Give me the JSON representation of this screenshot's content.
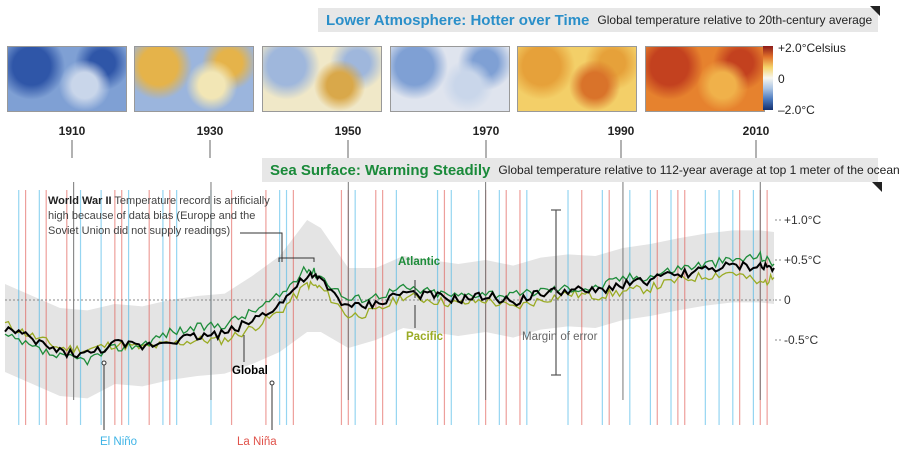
{
  "header1": {
    "title": "Lower Atmosphere: Hotter over Time",
    "subtitle": "Global temperature relative to 20th-century average",
    "title_color": "#2a8fc9"
  },
  "header2": {
    "title": "Sea Surface: Warming Steadily",
    "subtitle": "Global temperature relative to 112-year average at top 1 meter of the ocean",
    "title_color": "#1a8a3a"
  },
  "maps": [
    {
      "year": "1910",
      "tone": "cool"
    },
    {
      "year": "1930",
      "tone": "mixed-warm"
    },
    {
      "year": "1950",
      "tone": "mixed"
    },
    {
      "year": "1970",
      "tone": "mixed-cool"
    },
    {
      "year": "1990",
      "tone": "warm"
    },
    {
      "year": "2010",
      "tone": "hot"
    }
  ],
  "colorbar": {
    "top": "+2.0°Celsius",
    "mid": "0",
    "bottom": "–2.0°C"
  },
  "annotation": {
    "lead": "World War II",
    "text": "Temperature record is artificially high because of data bias (Europe and the Soviet Union did not supply readings)"
  },
  "labels": {
    "atlantic": "Atlantic",
    "pacific": "Pacific",
    "global": "Global",
    "margin": "Margin of error",
    "el_nino": "El Niño",
    "la_nina": "La Niña"
  },
  "colors": {
    "atlantic": "#1e8c3a",
    "pacific": "#9aab24",
    "global": "#000000",
    "el_nino": "#3fb4e6",
    "la_nina": "#e0524a",
    "band": "#e4e4e4"
  },
  "chart_data": {
    "type": "line",
    "x": [
      1900,
      1904,
      1908,
      1912,
      1916,
      1920,
      1924,
      1928,
      1932,
      1936,
      1940,
      1944,
      1946,
      1950,
      1954,
      1958,
      1962,
      1966,
      1970,
      1974,
      1978,
      1982,
      1986,
      1990,
      1994,
      1998,
      2002,
      2006,
      2010,
      2012
    ],
    "ylim": [
      -1.3,
      1.3
    ],
    "yticks": [
      "+1.0°C",
      "+0.5°C",
      "0",
      "-0.5°C"
    ],
    "ytick_values": [
      1.0,
      0.5,
      0,
      -0.5
    ],
    "series": [
      {
        "name": "Global",
        "values": [
          -0.35,
          -0.5,
          -0.65,
          -0.68,
          -0.55,
          -0.58,
          -0.5,
          -0.45,
          -0.42,
          -0.25,
          -0.05,
          0.3,
          0.25,
          -0.1,
          -0.05,
          0.1,
          0.05,
          0.0,
          0.05,
          -0.02,
          0.08,
          0.12,
          0.1,
          0.2,
          0.25,
          0.32,
          0.38,
          0.42,
          0.42,
          0.4
        ]
      },
      {
        "name": "Atlantic",
        "values": [
          -0.45,
          -0.6,
          -0.72,
          -0.75,
          -0.6,
          -0.55,
          -0.4,
          -0.35,
          -0.3,
          -0.15,
          0.05,
          0.4,
          0.3,
          0.0,
          0.05,
          0.15,
          0.1,
          0.05,
          0.1,
          0.05,
          0.12,
          0.15,
          0.15,
          0.28,
          0.3,
          0.4,
          0.45,
          0.5,
          0.55,
          0.45
        ]
      },
      {
        "name": "Pacific",
        "values": [
          -0.3,
          -0.45,
          -0.6,
          -0.62,
          -0.55,
          -0.6,
          -0.55,
          -0.5,
          -0.5,
          -0.35,
          -0.15,
          0.2,
          0.15,
          -0.2,
          -0.15,
          0.05,
          0.0,
          -0.05,
          0.0,
          -0.1,
          0.0,
          0.08,
          0.05,
          0.1,
          0.15,
          0.25,
          0.3,
          0.35,
          0.2,
          0.28
        ]
      }
    ],
    "error_band_halfwidth": [
      0.55,
      0.55,
      0.55,
      0.55,
      0.5,
      0.5,
      0.5,
      0.5,
      0.5,
      0.55,
      0.6,
      0.7,
      0.65,
      0.5,
      0.45,
      0.45,
      0.45,
      0.45,
      0.45,
      0.45,
      0.45,
      0.45,
      0.45,
      0.45,
      0.45,
      0.45,
      0.45,
      0.45,
      0.45,
      0.45
    ],
    "el_nino_years": [
      1902,
      1905,
      1911,
      1914,
      1918,
      1923,
      1925,
      1930,
      1940,
      1941,
      1951,
      1957,
      1963,
      1965,
      1969,
      1972,
      1976,
      1982,
      1987,
      1991,
      1994,
      1997,
      2002,
      2004,
      2006,
      2009
    ],
    "la_nina_years": [
      1903,
      1906,
      1909,
      1916,
      1917,
      1921,
      1924,
      1933,
      1938,
      1942,
      1949,
      1950,
      1954,
      1955,
      1964,
      1970,
      1973,
      1975,
      1984,
      1988,
      1995,
      1998,
      1999,
      2007,
      2010,
      2011
    ]
  }
}
